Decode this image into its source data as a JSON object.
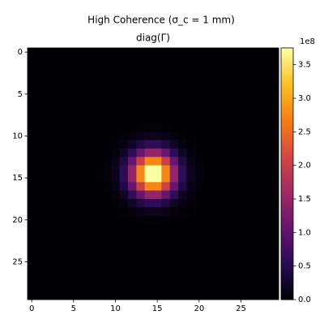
{
  "chart_data": {
    "type": "heatmap",
    "title": "High Coherence  (σ_c = 1 mm)",
    "subtitle": "diag(Γ)",
    "colormap": "inferno",
    "clim": [
      0,
      3.75
    ],
    "colorbar_offset_label": "1e8",
    "xlim": [
      -0.5,
      29.5
    ],
    "ylim": [
      29.5,
      -0.5
    ],
    "xticks": [
      0,
      5,
      10,
      15,
      20,
      25
    ],
    "yticks": [
      0,
      5,
      10,
      15,
      20,
      25
    ],
    "cticks": [
      {
        "value": 0,
        "label": "0.0"
      },
      {
        "value": 0.5,
        "label": "0.5"
      },
      {
        "value": 1,
        "label": "1.0"
      },
      {
        "value": 1.5,
        "label": "1.5"
      },
      {
        "value": 2,
        "label": "2.0"
      },
      {
        "value": 2.5,
        "label": "2.5"
      },
      {
        "value": 3,
        "label": "3.0"
      },
      {
        "value": 3.5,
        "label": "3.5"
      }
    ],
    "z": [
      [
        0,
        0,
        0,
        0,
        0,
        0,
        0,
        0,
        0,
        0,
        0,
        0,
        0,
        0,
        0,
        0,
        0,
        0,
        0,
        0,
        0,
        0,
        0,
        0,
        0,
        0,
        0,
        0,
        0,
        0
      ],
      [
        0,
        0,
        0,
        0,
        0,
        0,
        0,
        0,
        0,
        0,
        0,
        0,
        0,
        0,
        0,
        0,
        0,
        0,
        0,
        0,
        0,
        0,
        0,
        0,
        0,
        0,
        0,
        0,
        0,
        0
      ],
      [
        0,
        0,
        0,
        0,
        0,
        0,
        0,
        0,
        0,
        0,
        0,
        0,
        0,
        0,
        0,
        0,
        0,
        0,
        0,
        0,
        0,
        0,
        0,
        0,
        0,
        0,
        0,
        0,
        0,
        0
      ],
      [
        0,
        0,
        0,
        0,
        0,
        0,
        0,
        0,
        0,
        0,
        0,
        0,
        0,
        0,
        0,
        0,
        0,
        0,
        0,
        0,
        0,
        0,
        0,
        0,
        0,
        0,
        0,
        0,
        0,
        0
      ],
      [
        0,
        0,
        0,
        0,
        0,
        0,
        0,
        0,
        0,
        0,
        0,
        0,
        0,
        0,
        0,
        0,
        0,
        0,
        0,
        0,
        0,
        0,
        0,
        0,
        0,
        0,
        0,
        0,
        0,
        0
      ],
      [
        0,
        0,
        0,
        0,
        0,
        0,
        0,
        0,
        0,
        0,
        0,
        0,
        0,
        0,
        0,
        0,
        0,
        0,
        0,
        0,
        0,
        0,
        0,
        0,
        0,
        0,
        0,
        0,
        0,
        0
      ],
      [
        0,
        0,
        0,
        0,
        0,
        0,
        0,
        0,
        0,
        0,
        0,
        0,
        0,
        0,
        0,
        0,
        0,
        0,
        0,
        0,
        0,
        0,
        0,
        0,
        0,
        0,
        0,
        0,
        0,
        0
      ],
      [
        0,
        0,
        0,
        0,
        0,
        0,
        0,
        0,
        0,
        0,
        0,
        0,
        0,
        0,
        0,
        0,
        0,
        0,
        0,
        0,
        0,
        0,
        0,
        0,
        0,
        0,
        0,
        0,
        0,
        0
      ],
      [
        0,
        0,
        0,
        0,
        0,
        0,
        0,
        0,
        0,
        0,
        0,
        0,
        0,
        0,
        0.01,
        0.01,
        0,
        0,
        0,
        0,
        0,
        0,
        0,
        0,
        0,
        0,
        0,
        0,
        0,
        0
      ],
      [
        0,
        0,
        0,
        0,
        0,
        0,
        0,
        0,
        0,
        0,
        0,
        0.01,
        0.01,
        0.03,
        0.04,
        0.04,
        0.03,
        0.01,
        0.01,
        0,
        0,
        0,
        0,
        0,
        0,
        0,
        0,
        0,
        0,
        0
      ],
      [
        0,
        0,
        0,
        0,
        0,
        0,
        0,
        0,
        0,
        0,
        0.01,
        0.03,
        0.07,
        0.13,
        0.17,
        0.17,
        0.13,
        0.07,
        0.03,
        0.01,
        0,
        0,
        0,
        0,
        0,
        0,
        0,
        0,
        0,
        0
      ],
      [
        0,
        0,
        0,
        0,
        0,
        0,
        0,
        0,
        0,
        0.01,
        0.03,
        0.09,
        0.23,
        0.43,
        0.59,
        0.59,
        0.43,
        0.23,
        0.09,
        0.03,
        0.01,
        0,
        0,
        0,
        0,
        0,
        0,
        0,
        0,
        0
      ],
      [
        0,
        0,
        0,
        0,
        0,
        0,
        0,
        0,
        0,
        0.01,
        0.07,
        0.23,
        0.59,
        1.09,
        1.48,
        1.48,
        1.09,
        0.59,
        0.23,
        0.07,
        0.01,
        0,
        0,
        0,
        0,
        0,
        0,
        0,
        0,
        0
      ],
      [
        0,
        0,
        0,
        0,
        0,
        0,
        0,
        0,
        0,
        0.03,
        0.13,
        0.43,
        1.09,
        2.02,
        2.75,
        2.75,
        2.02,
        1.09,
        0.43,
        0.13,
        0.03,
        0,
        0,
        0,
        0,
        0,
        0,
        0,
        0,
        0
      ],
      [
        0,
        0,
        0,
        0,
        0,
        0,
        0,
        0,
        0.01,
        0.04,
        0.17,
        0.59,
        1.48,
        2.75,
        3.75,
        3.75,
        2.75,
        1.48,
        0.59,
        0.17,
        0.04,
        0.01,
        0,
        0,
        0,
        0,
        0,
        0,
        0,
        0
      ],
      [
        0,
        0,
        0,
        0,
        0,
        0,
        0,
        0,
        0.01,
        0.04,
        0.17,
        0.59,
        1.48,
        2.75,
        3.75,
        3.75,
        2.75,
        1.48,
        0.59,
        0.17,
        0.04,
        0.01,
        0,
        0,
        0,
        0,
        0,
        0,
        0,
        0
      ],
      [
        0,
        0,
        0,
        0,
        0,
        0,
        0,
        0,
        0,
        0.03,
        0.13,
        0.43,
        1.09,
        2.02,
        2.75,
        2.75,
        2.02,
        1.09,
        0.43,
        0.13,
        0.03,
        0,
        0,
        0,
        0,
        0,
        0,
        0,
        0,
        0
      ],
      [
        0,
        0,
        0,
        0,
        0,
        0,
        0,
        0,
        0,
        0.01,
        0.07,
        0.23,
        0.59,
        1.09,
        1.48,
        1.48,
        1.09,
        0.59,
        0.23,
        0.07,
        0.01,
        0,
        0,
        0,
        0,
        0,
        0,
        0,
        0,
        0
      ],
      [
        0,
        0,
        0,
        0,
        0,
        0,
        0,
        0,
        0,
        0.01,
        0.03,
        0.09,
        0.23,
        0.43,
        0.59,
        0.59,
        0.43,
        0.23,
        0.09,
        0.03,
        0.01,
        0,
        0,
        0,
        0,
        0,
        0,
        0,
        0,
        0
      ],
      [
        0,
        0,
        0,
        0,
        0,
        0,
        0,
        0,
        0,
        0,
        0.01,
        0.03,
        0.07,
        0.13,
        0.17,
        0.17,
        0.13,
        0.07,
        0.03,
        0.01,
        0,
        0,
        0,
        0,
        0,
        0,
        0,
        0,
        0,
        0
      ],
      [
        0,
        0,
        0,
        0,
        0,
        0,
        0,
        0,
        0,
        0,
        0,
        0.01,
        0.01,
        0.03,
        0.04,
        0.04,
        0.03,
        0.01,
        0.01,
        0,
        0,
        0,
        0,
        0,
        0,
        0,
        0,
        0,
        0,
        0
      ],
      [
        0,
        0,
        0,
        0,
        0,
        0,
        0,
        0,
        0,
        0,
        0,
        0,
        0,
        0,
        0.01,
        0.01,
        0,
        0,
        0,
        0,
        0,
        0,
        0,
        0,
        0,
        0,
        0,
        0,
        0,
        0
      ],
      [
        0,
        0,
        0,
        0,
        0,
        0,
        0,
        0,
        0,
        0,
        0,
        0,
        0,
        0,
        0,
        0,
        0,
        0,
        0,
        0,
        0,
        0,
        0,
        0,
        0,
        0,
        0,
        0,
        0,
        0
      ],
      [
        0,
        0,
        0,
        0,
        0,
        0,
        0,
        0,
        0,
        0,
        0,
        0,
        0,
        0,
        0,
        0,
        0,
        0,
        0,
        0,
        0,
        0,
        0,
        0,
        0,
        0,
        0,
        0,
        0,
        0
      ],
      [
        0,
        0,
        0,
        0,
        0,
        0,
        0,
        0,
        0,
        0,
        0,
        0,
        0,
        0,
        0,
        0,
        0,
        0,
        0,
        0,
        0,
        0,
        0,
        0,
        0,
        0,
        0,
        0,
        0,
        0
      ],
      [
        0,
        0,
        0,
        0,
        0,
        0,
        0,
        0,
        0,
        0,
        0,
        0,
        0,
        0,
        0,
        0,
        0,
        0,
        0,
        0,
        0,
        0,
        0,
        0,
        0,
        0,
        0,
        0,
        0,
        0
      ],
      [
        0,
        0,
        0,
        0,
        0,
        0,
        0,
        0,
        0,
        0,
        0,
        0,
        0,
        0,
        0,
        0,
        0,
        0,
        0,
        0,
        0,
        0,
        0,
        0,
        0,
        0,
        0,
        0,
        0,
        0
      ],
      [
        0,
        0,
        0,
        0,
        0,
        0,
        0,
        0,
        0,
        0,
        0,
        0,
        0,
        0,
        0,
        0,
        0,
        0,
        0,
        0,
        0,
        0,
        0,
        0,
        0,
        0,
        0,
        0,
        0,
        0
      ],
      [
        0,
        0,
        0,
        0,
        0,
        0,
        0,
        0,
        0,
        0,
        0,
        0,
        0,
        0,
        0,
        0,
        0,
        0,
        0,
        0,
        0,
        0,
        0,
        0,
        0,
        0,
        0,
        0,
        0,
        0
      ],
      [
        0,
        0,
        0,
        0,
        0,
        0,
        0,
        0,
        0,
        0,
        0,
        0,
        0,
        0,
        0,
        0,
        0,
        0,
        0,
        0,
        0,
        0,
        0,
        0,
        0,
        0,
        0,
        0,
        0,
        0
      ]
    ]
  }
}
